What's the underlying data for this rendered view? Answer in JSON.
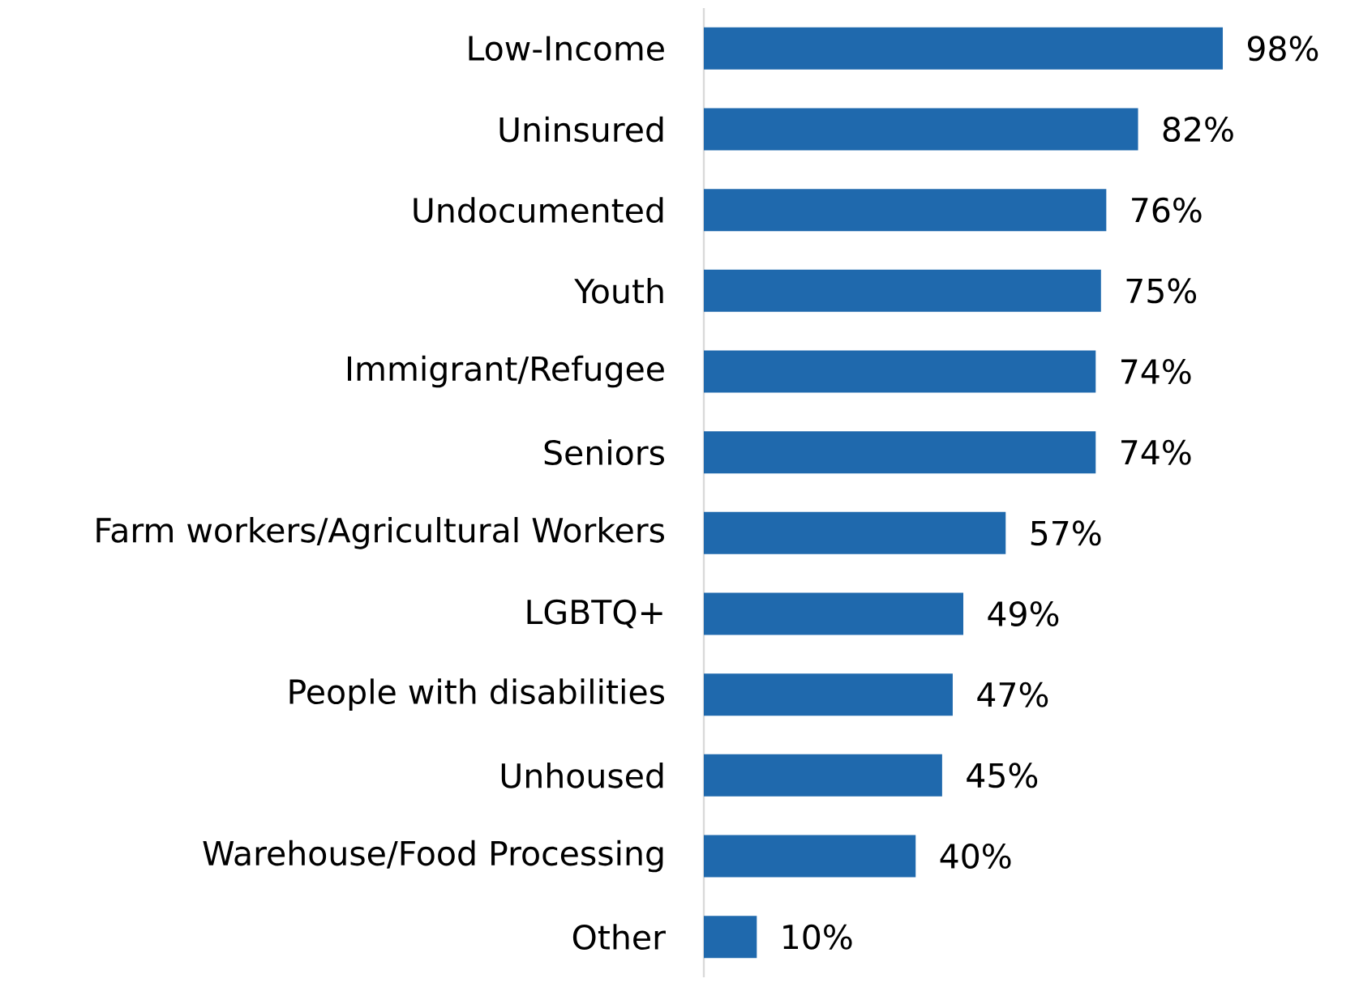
{
  "chart_data": {
    "type": "bar",
    "orientation": "horizontal",
    "categories": [
      "Low-Income",
      "Uninsured",
      "Undocumented",
      "Youth",
      "Immigrant/Refugee",
      "Seniors",
      "Farm workers/Agricultural Workers",
      "LGBTQ+",
      "People with disabilities",
      "Unhoused",
      "Warehouse/Food Processing",
      "Other"
    ],
    "values": [
      98,
      82,
      76,
      75,
      74,
      74,
      57,
      49,
      47,
      45,
      40,
      10
    ],
    "value_labels": [
      "98%",
      "82%",
      "76%",
      "75%",
      "74%",
      "74%",
      "57%",
      "49%",
      "47%",
      "45%",
      "40%",
      "10%"
    ],
    "color": "#1f69ad"
  }
}
